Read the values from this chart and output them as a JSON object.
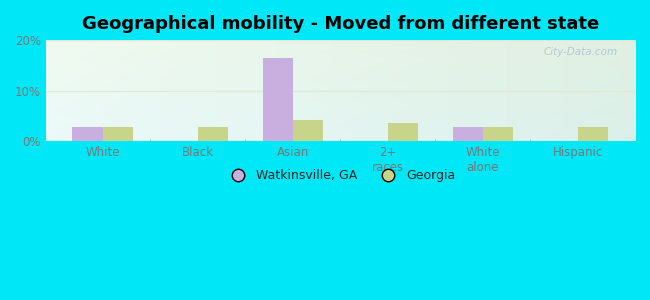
{
  "title": "Geographical mobility - Moved from different state",
  "categories": [
    "White",
    "Black",
    "Asian",
    "2+\nraces",
    "White\nalone",
    "Hispanic"
  ],
  "watkinsville_values": [
    2.8,
    0.0,
    16.5,
    0.0,
    2.8,
    0.0
  ],
  "georgia_values": [
    2.8,
    2.8,
    4.2,
    3.5,
    2.8,
    2.8
  ],
  "watkinsville_color": "#c9aee0",
  "georgia_color": "#c8d48a",
  "ylim": [
    0,
    20
  ],
  "yticks": [
    0,
    10,
    20
  ],
  "yticklabels": [
    "0%",
    "10%",
    "20%"
  ],
  "bar_width": 0.32,
  "outer_bg": "#00e8f8",
  "plot_bg_top_left": "#f0faf0",
  "plot_bg_bottom_right": "#d0f0e0",
  "title_fontsize": 13,
  "legend_labels": [
    "Watkinsville, GA",
    "Georgia"
  ],
  "watermark": "City-Data.com",
  "tick_color": "#777777",
  "grid_color": "#e0e8d8",
  "separator_color": "#aaaaaa"
}
